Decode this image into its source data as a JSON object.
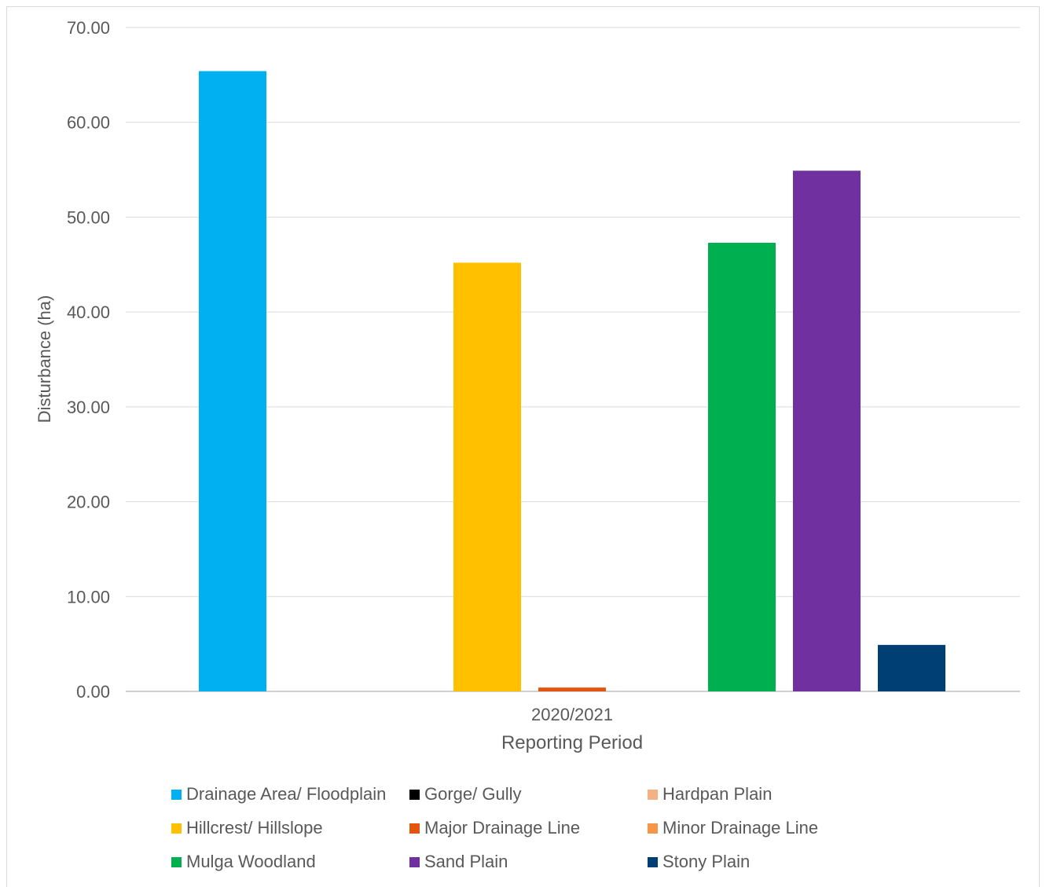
{
  "chart_data": {
    "type": "bar",
    "categories": [
      "2020/2021"
    ],
    "xlabel": "Reporting Period",
    "ylabel": "Disturbance (ha)",
    "ylim": [
      0,
      70
    ],
    "yticks": [
      "0.00",
      "10.00",
      "20.00",
      "30.00",
      "40.00",
      "50.00",
      "60.00",
      "70.00"
    ],
    "grid": true,
    "legend_position": "bottom",
    "series": [
      {
        "name": "Drainage Area/ Floodplain",
        "color": "#00b0f0",
        "values": [
          65.4
        ]
      },
      {
        "name": "Gorge/ Gully",
        "color": "#000000",
        "values": [
          0
        ]
      },
      {
        "name": "Hardpan Plain",
        "color": "#f4b183",
        "values": [
          0
        ]
      },
      {
        "name": "Hillcrest/ Hillslope",
        "color": "#ffc000",
        "values": [
          45.2
        ]
      },
      {
        "name": "Major Drainage Line",
        "color": "#e4540c",
        "values": [
          0.4
        ]
      },
      {
        "name": "Minor Drainage Line",
        "color": "#f79646",
        "values": [
          0
        ]
      },
      {
        "name": "Mulga Woodland",
        "color": "#00b050",
        "values": [
          47.3
        ]
      },
      {
        "name": "Sand Plain",
        "color": "#7030a0",
        "values": [
          54.9
        ]
      },
      {
        "name": "Stony Plain",
        "color": "#003f73",
        "values": [
          4.9
        ]
      }
    ]
  }
}
